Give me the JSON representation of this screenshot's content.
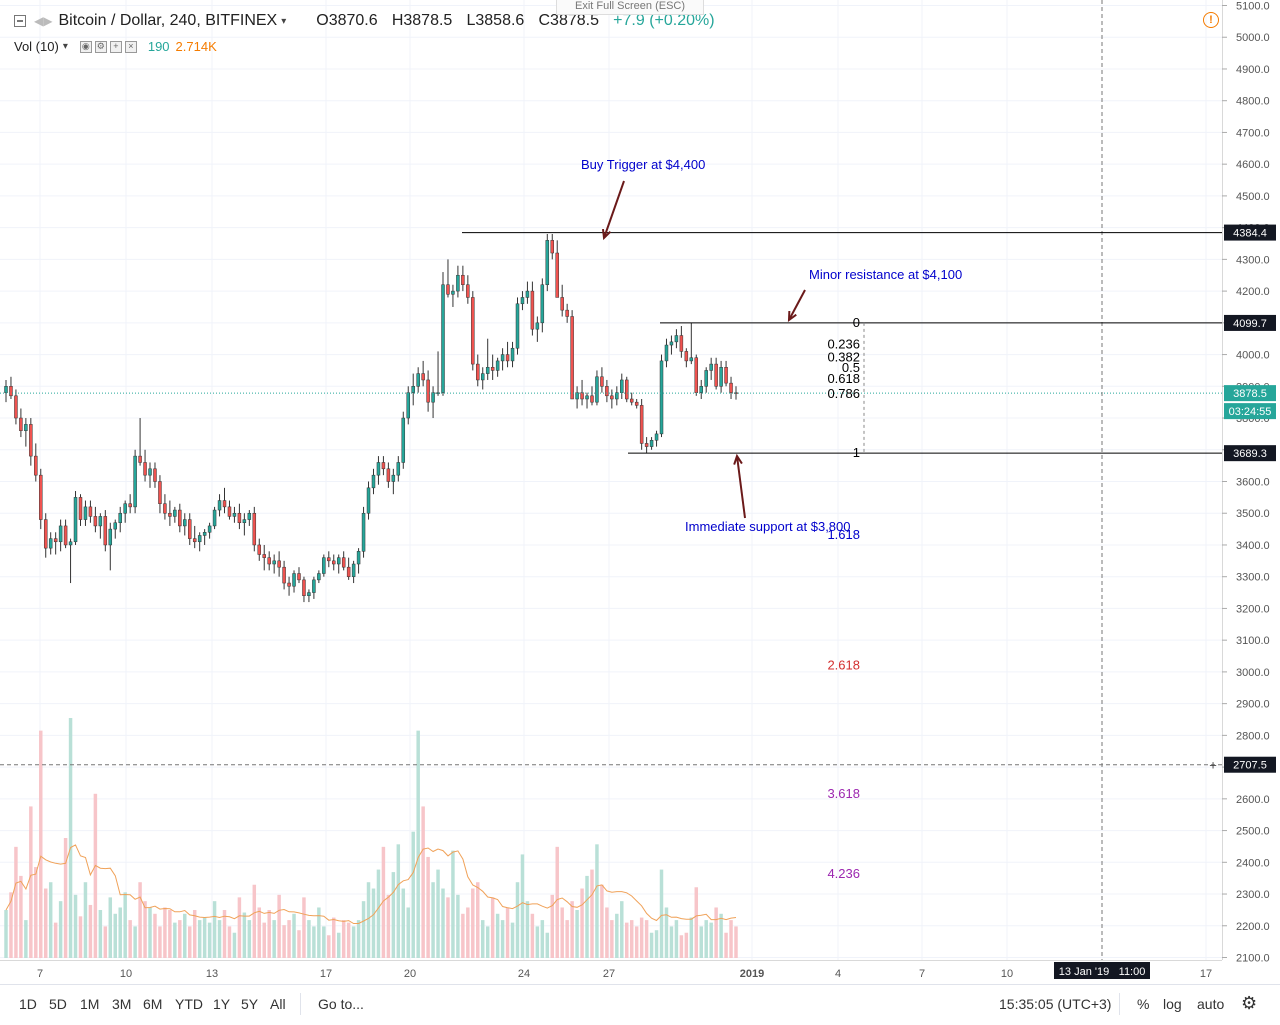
{
  "header": {
    "symbol": "Bitcoin / Dollar, 240, BITFINEX",
    "ohlc": {
      "open": "O3870.6",
      "high": "H3878.5",
      "low": "L3858.6",
      "close": "C3878.5",
      "change": "+7.9 (+0.20%)"
    },
    "volume": {
      "label": "Vol (10)",
      "value1": "190",
      "value2": "2.714K"
    },
    "exit_fullscreen": "Exit Full Screen (ESC)",
    "alert_icon": "!"
  },
  "toolbar": {
    "ranges": [
      "1D",
      "5D",
      "1M",
      "3M",
      "6M",
      "YTD",
      "1Y",
      "5Y",
      "All"
    ],
    "goto": "Go to...",
    "time": "15:35:05 (UTC+3)",
    "percent": "%",
    "log": "log",
    "auto": "auto"
  },
  "colors": {
    "up": "#26a69a",
    "down": "#ef5350",
    "vol_up": "#b9e0d7",
    "vol_down": "#f7c5c9",
    "vol_ma": "#f0a259",
    "annotation": "#0000cc",
    "arrow": "#6b1a1a",
    "fib_red": "#d32f2f",
    "fib_purple": "#9c27b0"
  },
  "chart_data": {
    "type": "candlestick",
    "title": "Bitcoin / Dollar, 240, BITFINEX",
    "ylim": [
      2100,
      5100
    ],
    "y_ticks": [
      "5100.0",
      "5000.0",
      "4900.0",
      "4800.0",
      "4700.0",
      "4600.0",
      "4500.0",
      "4400.0",
      "4300.0",
      "4200.0",
      "4100.0",
      "4000.0",
      "3900.0",
      "3800.0",
      "3700.0",
      "3600.0",
      "3500.0",
      "3400.0",
      "3300.0",
      "3200.0",
      "3100.0",
      "3000.0",
      "2900.0",
      "2800.0",
      "2700.0",
      "2600.0",
      "2500.0",
      "2400.0",
      "2300.0",
      "2200.0",
      "2100.0"
    ],
    "x_ticks": [
      "7",
      "10",
      "13",
      "17",
      "20",
      "24",
      "27",
      "2019",
      "4",
      "7",
      "10",
      "17"
    ],
    "cursor_date_label": "13 Jan '19",
    "cursor_time_label": "11:00",
    "price_labels": [
      {
        "value": 4384.4,
        "text": "4384.4",
        "style": "dark"
      },
      {
        "value": 4099.7,
        "text": "4099.7",
        "style": "dark"
      },
      {
        "value": 3878.5,
        "text": "3878.5",
        "style": "green"
      },
      {
        "value": 3689.3,
        "text": "3689.3",
        "style": "dark"
      },
      {
        "value": 2707.5,
        "text": "2707.5",
        "style": "dark"
      }
    ],
    "countdown": "03:24:55",
    "horizontal_lines": [
      {
        "value": 4384.4,
        "label": "Buy Trigger at $4,400"
      },
      {
        "value": 4099.7,
        "label": "Minor resistance at $4,100"
      },
      {
        "value": 3689.3,
        "label": "Immediate support at $3,800"
      }
    ],
    "fibonacci": [
      {
        "level": "0",
        "value": 4099.7
      },
      {
        "level": "0.236",
        "value": 4032.5
      },
      {
        "level": "0.382",
        "value": 3990.9
      },
      {
        "level": "0.5",
        "value": 3957.3
      },
      {
        "level": "0.618",
        "value": 3923.7
      },
      {
        "level": "0.786",
        "value": 3875.8
      },
      {
        "level": "1",
        "value": 3689.3
      },
      {
        "level": "1.618",
        "value": 3431.0
      },
      {
        "level": "2.618",
        "value": 3019.5
      },
      {
        "level": "3.618",
        "value": 2616.0
      },
      {
        "level": "4.236",
        "value": 2363.0
      }
    ],
    "candles": [
      [
        3880,
        3920,
        3850,
        3900
      ],
      [
        3900,
        3930,
        3860,
        3870
      ],
      [
        3870,
        3890,
        3780,
        3800
      ],
      [
        3800,
        3830,
        3740,
        3760
      ],
      [
        3760,
        3800,
        3710,
        3780
      ],
      [
        3780,
        3800,
        3650,
        3680
      ],
      [
        3680,
        3720,
        3600,
        3620
      ],
      [
        3620,
        3640,
        3450,
        3480
      ],
      [
        3480,
        3500,
        3360,
        3390
      ],
      [
        3390,
        3440,
        3370,
        3420
      ],
      [
        3420,
        3440,
        3370,
        3410
      ],
      [
        3410,
        3480,
        3380,
        3460
      ],
      [
        3460,
        3480,
        3390,
        3400
      ],
      [
        3400,
        3420,
        3280,
        3410
      ],
      [
        3410,
        3570,
        3400,
        3550
      ],
      [
        3550,
        3560,
        3460,
        3480
      ],
      [
        3480,
        3540,
        3460,
        3520
      ],
      [
        3520,
        3540,
        3470,
        3490
      ],
      [
        3490,
        3520,
        3440,
        3460
      ],
      [
        3460,
        3500,
        3420,
        3490
      ],
      [
        3490,
        3510,
        3380,
        3400
      ],
      [
        3400,
        3470,
        3320,
        3450
      ],
      [
        3450,
        3480,
        3420,
        3470
      ],
      [
        3470,
        3520,
        3440,
        3500
      ],
      [
        3500,
        3540,
        3470,
        3530
      ],
      [
        3530,
        3560,
        3500,
        3520
      ],
      [
        3520,
        3700,
        3500,
        3680
      ],
      [
        3680,
        3800,
        3650,
        3660
      ],
      [
        3660,
        3700,
        3600,
        3620
      ],
      [
        3620,
        3660,
        3580,
        3640
      ],
      [
        3640,
        3660,
        3580,
        3600
      ],
      [
        3600,
        3620,
        3500,
        3530
      ],
      [
        3530,
        3560,
        3480,
        3500
      ],
      [
        3500,
        3540,
        3460,
        3490
      ],
      [
        3490,
        3520,
        3470,
        3510
      ],
      [
        3510,
        3530,
        3440,
        3460
      ],
      [
        3460,
        3500,
        3430,
        3480
      ],
      [
        3480,
        3500,
        3400,
        3420
      ],
      [
        3420,
        3460,
        3390,
        3410
      ],
      [
        3410,
        3440,
        3380,
        3430
      ],
      [
        3430,
        3450,
        3400,
        3440
      ],
      [
        3440,
        3470,
        3420,
        3460
      ],
      [
        3460,
        3520,
        3450,
        3510
      ],
      [
        3510,
        3560,
        3490,
        3540
      ],
      [
        3540,
        3580,
        3500,
        3520
      ],
      [
        3520,
        3540,
        3480,
        3490
      ],
      [
        3490,
        3520,
        3470,
        3500
      ],
      [
        3500,
        3530,
        3450,
        3470
      ],
      [
        3470,
        3500,
        3430,
        3480
      ],
      [
        3480,
        3510,
        3460,
        3500
      ],
      [
        3500,
        3520,
        3380,
        3400
      ],
      [
        3400,
        3420,
        3350,
        3370
      ],
      [
        3370,
        3400,
        3320,
        3360
      ],
      [
        3360,
        3380,
        3320,
        3340
      ],
      [
        3340,
        3370,
        3310,
        3350
      ],
      [
        3350,
        3380,
        3300,
        3330
      ],
      [
        3330,
        3350,
        3260,
        3280
      ],
      [
        3280,
        3300,
        3240,
        3270
      ],
      [
        3270,
        3320,
        3250,
        3310
      ],
      [
        3310,
        3330,
        3280,
        3290
      ],
      [
        3290,
        3300,
        3220,
        3240
      ],
      [
        3240,
        3260,
        3220,
        3250
      ],
      [
        3250,
        3300,
        3230,
        3290
      ],
      [
        3290,
        3320,
        3280,
        3310
      ],
      [
        3310,
        3370,
        3300,
        3360
      ],
      [
        3360,
        3380,
        3330,
        3350
      ],
      [
        3350,
        3370,
        3320,
        3340
      ],
      [
        3340,
        3370,
        3310,
        3360
      ],
      [
        3360,
        3380,
        3320,
        3330
      ],
      [
        3330,
        3360,
        3290,
        3300
      ],
      [
        3300,
        3350,
        3280,
        3340
      ],
      [
        3340,
        3390,
        3310,
        3380
      ],
      [
        3380,
        3520,
        3360,
        3500
      ],
      [
        3500,
        3600,
        3480,
        3580
      ],
      [
        3580,
        3640,
        3560,
        3620
      ],
      [
        3620,
        3680,
        3590,
        3660
      ],
      [
        3660,
        3680,
        3620,
        3640
      ],
      [
        3640,
        3660,
        3580,
        3600
      ],
      [
        3600,
        3640,
        3560,
        3620
      ],
      [
        3620,
        3680,
        3600,
        3660
      ],
      [
        3660,
        3820,
        3640,
        3800
      ],
      [
        3800,
        3900,
        3780,
        3880
      ],
      [
        3880,
        3940,
        3840,
        3900
      ],
      [
        3900,
        3960,
        3880,
        3940
      ],
      [
        3940,
        3980,
        3900,
        3920
      ],
      [
        3920,
        3950,
        3820,
        3850
      ],
      [
        3850,
        3900,
        3800,
        3880
      ],
      [
        3880,
        4010,
        3870,
        3880
      ],
      [
        3880,
        4260,
        3870,
        4220
      ],
      [
        4220,
        4300,
        4180,
        4190
      ],
      [
        4190,
        4220,
        4150,
        4200
      ],
      [
        4200,
        4280,
        4180,
        4250
      ],
      [
        4250,
        4280,
        4200,
        4220
      ],
      [
        4220,
        4250,
        4160,
        4180
      ],
      [
        4180,
        4200,
        3950,
        3970
      ],
      [
        3970,
        4000,
        3900,
        3920
      ],
      [
        3920,
        3960,
        3890,
        3940
      ],
      [
        3940,
        4050,
        3920,
        3960
      ],
      [
        3960,
        4000,
        3920,
        3950
      ],
      [
        3950,
        3990,
        3930,
        3980
      ],
      [
        3980,
        4020,
        3950,
        4000
      ],
      [
        4000,
        4040,
        3960,
        3980
      ],
      [
        3980,
        4040,
        3960,
        4020
      ],
      [
        4020,
        4180,
        4000,
        4160
      ],
      [
        4160,
        4200,
        4140,
        4180
      ],
      [
        4180,
        4230,
        4160,
        4200
      ],
      [
        4200,
        4230,
        4060,
        4080
      ],
      [
        4080,
        4120,
        4040,
        4100
      ],
      [
        4100,
        4240,
        4070,
        4220
      ],
      [
        4220,
        4380,
        4200,
        4360
      ],
      [
        4360,
        4380,
        4300,
        4320
      ],
      [
        4320,
        4360,
        4200,
        4180
      ],
      [
        4180,
        4220,
        4120,
        4140
      ],
      [
        4140,
        4160,
        4100,
        4120
      ],
      [
        4120,
        4140,
        3880,
        3860
      ],
      [
        3860,
        3900,
        3830,
        3880
      ],
      [
        3880,
        3920,
        3840,
        3860
      ],
      [
        3860,
        3880,
        3830,
        3870
      ],
      [
        3870,
        3900,
        3840,
        3850
      ],
      [
        3850,
        3950,
        3840,
        3930
      ],
      [
        3930,
        3960,
        3880,
        3900
      ],
      [
        3900,
        3920,
        3850,
        3870
      ],
      [
        3870,
        3890,
        3830,
        3860
      ],
      [
        3860,
        3900,
        3840,
        3880
      ],
      [
        3880,
        3940,
        3860,
        3920
      ],
      [
        3920,
        3930,
        3850,
        3860
      ],
      [
        3860,
        3880,
        3840,
        3850
      ],
      [
        3850,
        3860,
        3830,
        3840
      ],
      [
        3840,
        3860,
        3700,
        3720
      ],
      [
        3720,
        3740,
        3690,
        3710
      ],
      [
        3710,
        3740,
        3700,
        3730
      ],
      [
        3730,
        3760,
        3710,
        3750
      ],
      [
        3750,
        4000,
        3740,
        3980
      ],
      [
        3980,
        4050,
        3960,
        4030
      ],
      [
        4030,
        4060,
        4000,
        4040
      ],
      [
        4040,
        4080,
        4020,
        4060
      ],
      [
        4060,
        4090,
        3990,
        4010
      ],
      [
        4010,
        4020,
        3960,
        3980
      ],
      [
        3980,
        4100,
        3970,
        3990
      ],
      [
        3990,
        4000,
        3870,
        3880
      ],
      [
        3880,
        3920,
        3860,
        3900
      ],
      [
        3900,
        3960,
        3880,
        3950
      ],
      [
        3950,
        3990,
        3920,
        3970
      ],
      [
        3970,
        3990,
        3890,
        3900
      ],
      [
        3900,
        3980,
        3880,
        3960
      ],
      [
        3960,
        3980,
        3900,
        3910
      ],
      [
        3910,
        3930,
        3860,
        3880
      ],
      [
        3880,
        3900,
        3858,
        3878
      ]
    ],
    "volume": [
      38,
      52,
      88,
      65,
      30,
      120,
      72,
      180,
      55,
      60,
      28,
      45,
      95,
      190,
      50,
      33,
      60,
      42,
      130,
      38,
      25,
      48,
      35,
      40,
      52,
      30,
      25,
      60,
      45,
      40,
      35,
      25,
      40,
      38,
      28,
      30,
      35,
      25,
      38,
      30,
      32,
      28,
      45,
      30,
      38,
      25,
      20,
      48,
      36,
      30,
      58,
      40,
      28,
      38,
      30,
      50,
      26,
      30,
      35,
      22,
      48,
      30,
      25,
      40,
      25,
      18,
      32,
      20,
      30,
      28,
      25,
      30,
      45,
      60,
      55,
      70,
      88,
      50,
      68,
      90,
      55,
      40,
      100,
      180,
      120,
      80,
      60,
      70,
      55,
      48,
      85,
      50,
      35,
      40,
      55,
      60,
      30,
      25,
      48,
      35,
      30,
      40,
      28,
      60,
      82,
      45,
      35,
      25,
      30,
      20,
      50,
      88,
      40,
      30,
      45,
      38,
      55,
      65,
      70,
      90,
      58,
      40,
      30,
      35,
      45,
      28,
      30,
      25,
      32,
      30,
      20,
      22,
      70,
      40,
      25,
      30,
      18,
      20,
      32,
      56,
      25,
      30,
      28,
      40,
      35,
      20,
      30,
      25,
      22,
      15
    ]
  }
}
